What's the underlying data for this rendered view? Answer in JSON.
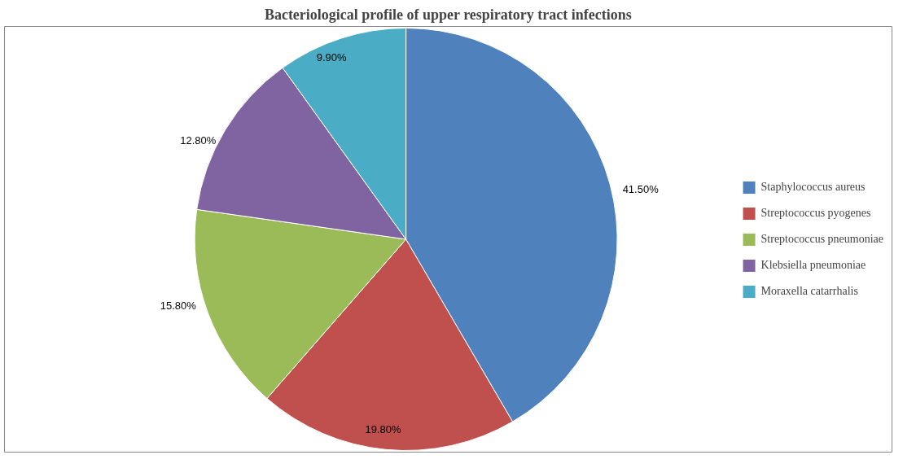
{
  "chart_data": {
    "type": "pie",
    "title": "Bacteriological profile of upper respiratory tract infections",
    "categories": [
      "Staphylococcus aureus",
      "Streptococcus pyogenes",
      "Streptococcus pneumoniae",
      "Klebsiella pneumoniae",
      "Moraxella catarrhalis"
    ],
    "values": [
      41.5,
      19.8,
      15.8,
      12.8,
      9.9
    ],
    "colors": [
      "#4f81bd",
      "#c0504d",
      "#9bbb59",
      "#8064a2",
      "#4bacc6"
    ],
    "value_labels": [
      "41.50%",
      "19.80%",
      "15.80%",
      "12.80%",
      "9.90%"
    ],
    "legend": "right"
  }
}
